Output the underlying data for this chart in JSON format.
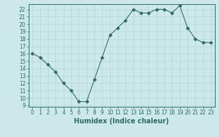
{
  "x": [
    0,
    1,
    2,
    3,
    4,
    5,
    6,
    7,
    8,
    9,
    10,
    11,
    12,
    13,
    14,
    15,
    16,
    17,
    18,
    19,
    20,
    21,
    22,
    23
  ],
  "y": [
    16,
    15.5,
    14.5,
    13.5,
    12,
    11,
    9.5,
    9.5,
    12.5,
    15.5,
    18.5,
    19.5,
    20.5,
    22,
    21.5,
    21.5,
    22,
    22,
    21.5,
    22.5,
    19.5,
    18,
    17.5,
    17.5
  ],
  "line_color": "#2d6b5e",
  "marker": "D",
  "marker_size": 2.5,
  "bg_color": "#cde8ea",
  "grid_color": "#afd4d6",
  "xlabel": "Humidex (Indice chaleur)",
  "ylim_min": 9,
  "ylim_max": 22.5,
  "yticks": [
    9,
    10,
    11,
    12,
    13,
    14,
    15,
    16,
    17,
    18,
    19,
    20,
    21,
    22
  ],
  "xticks": [
    0,
    1,
    2,
    3,
    4,
    5,
    6,
    7,
    8,
    9,
    10,
    11,
    12,
    13,
    14,
    15,
    16,
    17,
    18,
    19,
    20,
    21,
    22,
    23
  ],
  "tick_color": "#2d6b5e",
  "label_fontsize": 5.5,
  "xlabel_fontsize": 7
}
